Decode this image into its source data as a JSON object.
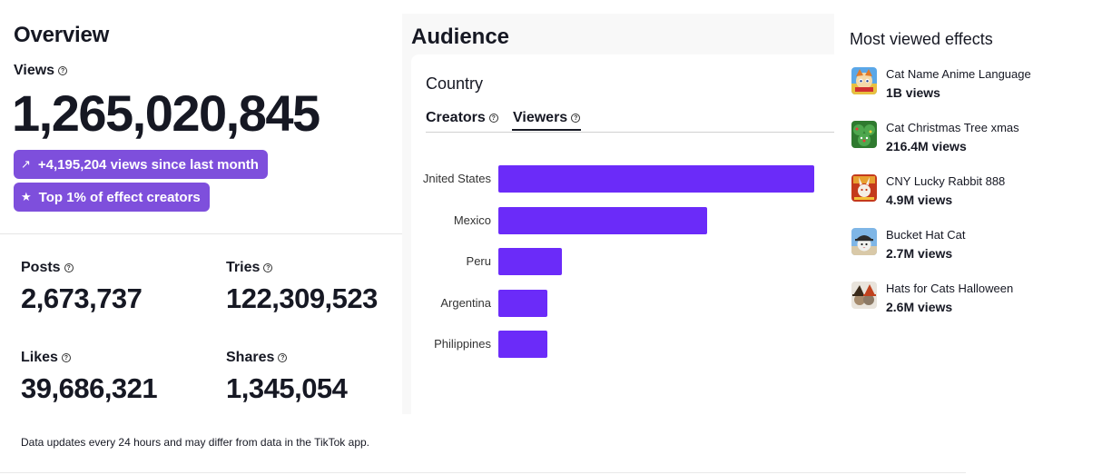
{
  "overview": {
    "title": "Overview",
    "views_label": "Views",
    "views_value": "1,265,020,845",
    "growth_badge": "+4,195,204 views since last month",
    "rank_badge": "Top 1% of effect creators",
    "stats": {
      "posts": {
        "label": "Posts",
        "value": "2,673,737"
      },
      "tries": {
        "label": "Tries",
        "value": "122,309,523"
      },
      "likes": {
        "label": "Likes",
        "value": "39,686,321"
      },
      "shares": {
        "label": "Shares",
        "value": "1,345,054"
      }
    },
    "note": "Data updates every 24 hours and may differ from data in the TikTok app."
  },
  "audience": {
    "title": "Audience",
    "subtitle": "Country",
    "tabs": [
      "Creators",
      "Viewers"
    ],
    "active_tab": "Viewers",
    "bar_color": "#6b2bf9",
    "countries": [
      {
        "name": "Jnited States",
        "share": 1.0
      },
      {
        "name": "Mexico",
        "share": 0.66
      },
      {
        "name": "Peru",
        "share": 0.2
      },
      {
        "name": "Argentina",
        "share": 0.155
      },
      {
        "name": "Philippines",
        "share": 0.155
      }
    ]
  },
  "most_viewed": {
    "title": "Most viewed effects",
    "effects": [
      {
        "name": "Cat Name Anime Language",
        "views": "1B views",
        "icon": "cat-anime-thumb"
      },
      {
        "name": "Cat Christmas Tree xmas",
        "views": "216.4M views",
        "icon": "cat-tree-thumb"
      },
      {
        "name": "CNY Lucky Rabbit 888",
        "views": "4.9M views",
        "icon": "rabbit-thumb"
      },
      {
        "name": "Bucket Hat Cat",
        "views": "2.7M views",
        "icon": "bucket-hat-thumb"
      },
      {
        "name": "Hats for Cats Halloween",
        "views": "2.6M views",
        "icon": "halloween-hat-thumb"
      }
    ]
  },
  "theme": {
    "accent": "#7e4fdc",
    "text": "#161823"
  }
}
